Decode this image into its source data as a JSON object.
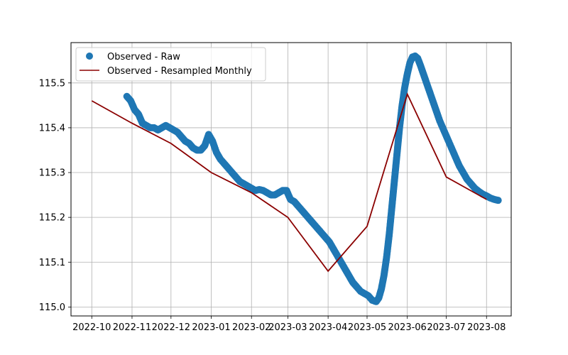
{
  "chart_data": {
    "type": "scatter",
    "title": "",
    "xlabel": "",
    "ylabel": "",
    "grid": true,
    "legend_position": "top-left",
    "xlim": [
      "2022-09-15",
      "2023-08-20"
    ],
    "ylim": [
      114.98,
      115.59
    ],
    "x_ticks": [
      "2022-10",
      "2022-11",
      "2022-12",
      "2023-01",
      "2023-02",
      "2023-03",
      "2023-04",
      "2023-05",
      "2023-06",
      "2023-07",
      "2023-08"
    ],
    "y_ticks": [
      "115.0",
      "115.1",
      "115.2",
      "115.3",
      "115.4",
      "115.5"
    ],
    "series": [
      {
        "name": "Observed - Raw",
        "kind": "scatter",
        "color": "#1f77b4",
        "points": [
          [
            "2022-10-28",
            115.47
          ],
          [
            "2022-10-31",
            115.46
          ],
          [
            "2022-11-03",
            115.44
          ],
          [
            "2022-11-06",
            115.43
          ],
          [
            "2022-11-09",
            115.41
          ],
          [
            "2022-11-12",
            115.405
          ],
          [
            "2022-11-15",
            115.4
          ],
          [
            "2022-11-18",
            115.4
          ],
          [
            "2022-11-21",
            115.395
          ],
          [
            "2022-11-24",
            115.4
          ],
          [
            "2022-11-27",
            115.405
          ],
          [
            "2022-11-30",
            115.4
          ],
          [
            "2022-12-03",
            115.395
          ],
          [
            "2022-12-06",
            115.39
          ],
          [
            "2022-12-09",
            115.38
          ],
          [
            "2022-12-12",
            115.37
          ],
          [
            "2022-12-15",
            115.365
          ],
          [
            "2022-12-18",
            115.355
          ],
          [
            "2022-12-21",
            115.35
          ],
          [
            "2022-12-24",
            115.35
          ],
          [
            "2022-12-27",
            115.36
          ],
          [
            "2022-12-30",
            115.385
          ],
          [
            "2023-01-02",
            115.37
          ],
          [
            "2023-01-05",
            115.345
          ],
          [
            "2023-01-08",
            115.33
          ],
          [
            "2023-01-11",
            115.32
          ],
          [
            "2023-01-14",
            115.31
          ],
          [
            "2023-01-17",
            115.3
          ],
          [
            "2023-01-20",
            115.29
          ],
          [
            "2023-01-23",
            115.28
          ],
          [
            "2023-01-26",
            115.275
          ],
          [
            "2023-01-29",
            115.27
          ],
          [
            "2023-02-01",
            115.265
          ],
          [
            "2023-02-04",
            115.26
          ],
          [
            "2023-02-07",
            115.262
          ],
          [
            "2023-02-10",
            115.26
          ],
          [
            "2023-02-13",
            115.255
          ],
          [
            "2023-02-16",
            115.25
          ],
          [
            "2023-02-19",
            115.25
          ],
          [
            "2023-02-22",
            115.255
          ],
          [
            "2023-02-25",
            115.26
          ],
          [
            "2023-02-28",
            115.26
          ],
          [
            "2023-03-03",
            115.24
          ],
          [
            "2023-03-06",
            115.235
          ],
          [
            "2023-03-09",
            115.225
          ],
          [
            "2023-03-12",
            115.215
          ],
          [
            "2023-03-15",
            115.205
          ],
          [
            "2023-03-18",
            115.195
          ],
          [
            "2023-03-21",
            115.185
          ],
          [
            "2023-03-24",
            115.175
          ],
          [
            "2023-03-27",
            115.165
          ],
          [
            "2023-03-30",
            115.155
          ],
          [
            "2023-04-02",
            115.145
          ],
          [
            "2023-04-05",
            115.13
          ],
          [
            "2023-04-08",
            115.115
          ],
          [
            "2023-04-11",
            115.1
          ],
          [
            "2023-04-14",
            115.085
          ],
          [
            "2023-04-17",
            115.07
          ],
          [
            "2023-04-20",
            115.055
          ],
          [
            "2023-04-23",
            115.045
          ],
          [
            "2023-04-26",
            115.035
          ],
          [
            "2023-04-29",
            115.03
          ],
          [
            "2023-05-02",
            115.025
          ],
          [
            "2023-05-05",
            115.015
          ],
          [
            "2023-05-08",
            115.012
          ],
          [
            "2023-05-10",
            115.02
          ],
          [
            "2023-05-12",
            115.04
          ],
          [
            "2023-05-14",
            115.07
          ],
          [
            "2023-05-16",
            115.11
          ],
          [
            "2023-05-18",
            115.16
          ],
          [
            "2023-05-20",
            115.22
          ],
          [
            "2023-05-22",
            115.28
          ],
          [
            "2023-05-24",
            115.34
          ],
          [
            "2023-05-26",
            115.4
          ],
          [
            "2023-05-28",
            115.45
          ],
          [
            "2023-05-30",
            115.49
          ],
          [
            "2023-06-01",
            115.52
          ],
          [
            "2023-06-03",
            115.545
          ],
          [
            "2023-06-05",
            115.558
          ],
          [
            "2023-06-07",
            115.56
          ],
          [
            "2023-06-09",
            115.555
          ],
          [
            "2023-06-11",
            115.54
          ],
          [
            "2023-06-14",
            115.515
          ],
          [
            "2023-06-17",
            115.49
          ],
          [
            "2023-06-20",
            115.465
          ],
          [
            "2023-06-23",
            115.44
          ],
          [
            "2023-06-26",
            115.415
          ],
          [
            "2023-06-29",
            115.395
          ],
          [
            "2023-07-02",
            115.375
          ],
          [
            "2023-07-05",
            115.355
          ],
          [
            "2023-07-08",
            115.335
          ],
          [
            "2023-07-11",
            115.315
          ],
          [
            "2023-07-14",
            115.3
          ],
          [
            "2023-07-17",
            115.285
          ],
          [
            "2023-07-20",
            115.275
          ],
          [
            "2023-07-23",
            115.265
          ],
          [
            "2023-07-26",
            115.258
          ],
          [
            "2023-07-29",
            115.252
          ],
          [
            "2023-08-01",
            115.248
          ],
          [
            "2023-08-04",
            115.243
          ],
          [
            "2023-08-07",
            115.24
          ],
          [
            "2023-08-10",
            115.238
          ]
        ]
      },
      {
        "name": "Observed - Resampled Monthly",
        "kind": "line",
        "color": "#8b0000",
        "points": [
          [
            "2022-10-01",
            115.46
          ],
          [
            "2022-11-01",
            115.41
          ],
          [
            "2022-12-01",
            115.365
          ],
          [
            "2023-01-01",
            115.3
          ],
          [
            "2023-02-01",
            115.255
          ],
          [
            "2023-03-01",
            115.2
          ],
          [
            "2023-04-01",
            115.08
          ],
          [
            "2023-05-01",
            115.18
          ],
          [
            "2023-06-01",
            115.475
          ],
          [
            "2023-07-01",
            115.29
          ],
          [
            "2023-08-01",
            115.24
          ]
        ]
      }
    ]
  }
}
